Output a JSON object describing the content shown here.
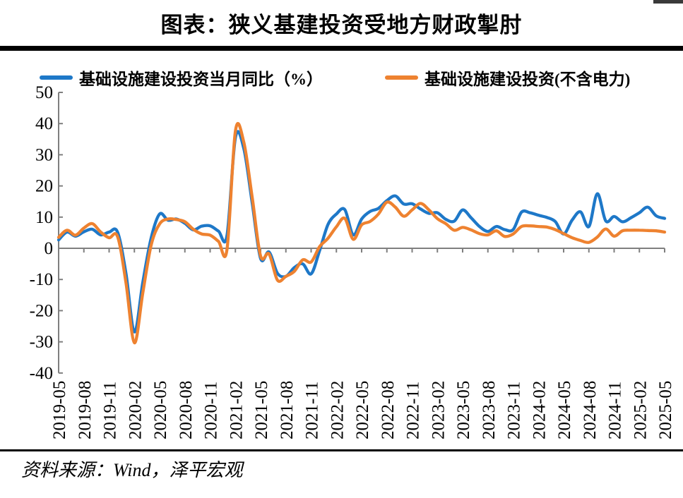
{
  "page": {
    "title": "图表：狭义基建投资受地方财政掣肘",
    "source": "资料来源：Wind，泽平宏观"
  },
  "legend": {
    "items": [
      {
        "label": "基础设施建设投资当月同比（%）",
        "color": "#1E78C8"
      },
      {
        "label": "基础设施建设投资(不含电力)",
        "color": "#EE8230"
      }
    ]
  },
  "chart_data": {
    "type": "line",
    "title": "图表：狭义基建投资受地方财政掣肘",
    "smoothed": true,
    "legend_position": "top",
    "grid": "zero-line-only",
    "ylim": [
      -40,
      50
    ],
    "yticks": [
      50,
      40,
      30,
      20,
      10,
      0,
      -10,
      -20,
      -30,
      -40
    ],
    "xtick_every": 3,
    "x": [
      "2019-05",
      "2019-06",
      "2019-07",
      "2019-08",
      "2019-09",
      "2019-10",
      "2019-11",
      "2019-12",
      "2020-01",
      "2020-02",
      "2020-03",
      "2020-04",
      "2020-05",
      "2020-06",
      "2020-07",
      "2020-08",
      "2020-09",
      "2020-10",
      "2020-11",
      "2020-12",
      "2021-01",
      "2021-02",
      "2021-03",
      "2021-04",
      "2021-05",
      "2021-06",
      "2021-07",
      "2021-08",
      "2021-09",
      "2021-10",
      "2021-11",
      "2021-12",
      "2022-01",
      "2022-02",
      "2022-03",
      "2022-04",
      "2022-05",
      "2022-06",
      "2022-07",
      "2022-08",
      "2022-09",
      "2022-10",
      "2022-11",
      "2022-12",
      "2023-01",
      "2023-02",
      "2023-03",
      "2023-04",
      "2023-05",
      "2023-06",
      "2023-07",
      "2023-08",
      "2023-09",
      "2023-10",
      "2023-11",
      "2023-12",
      "2024-01",
      "2024-02",
      "2024-03",
      "2024-04",
      "2024-05",
      "2024-06",
      "2024-07",
      "2024-08",
      "2024-09",
      "2024-10",
      "2024-11",
      "2024-12",
      "2025-01",
      "2025-02",
      "2025-03",
      "2025-04",
      "2025-05"
    ],
    "series": [
      {
        "name": "基础设施建设投资当月同比（%）",
        "color": "#1E78C8",
        "values": [
          2.7,
          5.2,
          3.9,
          5.3,
          6.1,
          4.3,
          5.2,
          5.2,
          -8.0,
          -26.8,
          -10.9,
          3.4,
          11.0,
          9.0,
          9.4,
          8.0,
          5.9,
          7.1,
          7.2,
          5.5,
          4.0,
          35.5,
          32.0,
          14.5,
          -3.3,
          -1.2,
          -8.0,
          -9.0,
          -6.2,
          -5.0,
          -8.2,
          -0.8,
          7.6,
          11.0,
          12.4,
          4.3,
          9.4,
          11.8,
          12.8,
          15.3,
          16.8,
          14.2,
          14.3,
          12.6,
          11.2,
          11.4,
          9.3,
          8.7,
          12.3,
          9.8,
          7.0,
          5.4,
          7.0,
          6.0,
          6.0,
          11.6,
          11.4,
          10.6,
          9.9,
          8.6,
          4.6,
          9.0,
          11.7,
          7.0,
          17.5,
          8.8,
          10.2,
          8.5,
          9.8,
          11.4,
          13.2,
          10.4,
          9.6
        ]
      },
      {
        "name": "基础设施建设投资(不含电力)",
        "color": "#EE8230",
        "values": [
          3.5,
          5.8,
          4.2,
          6.5,
          7.9,
          5.2,
          3.4,
          3.8,
          -11.0,
          -30.3,
          -14.3,
          1.1,
          7.8,
          9.4,
          9.2,
          8.5,
          6.1,
          4.6,
          4.2,
          2.2,
          -0.5,
          37.6,
          34.0,
          16.3,
          -2.5,
          -1.8,
          -10.2,
          -9.0,
          -7.4,
          -3.7,
          -4.4,
          0.5,
          3.2,
          6.9,
          9.6,
          2.9,
          7.5,
          8.6,
          11.0,
          14.8,
          13.2,
          10.3,
          12.3,
          14.4,
          12.3,
          9.5,
          7.9,
          5.8,
          6.7,
          5.9,
          4.7,
          4.3,
          5.6,
          3.8,
          4.6,
          7.0,
          7.2,
          7.0,
          6.8,
          6.0,
          4.7,
          3.4,
          2.5,
          1.9,
          3.6,
          6.2,
          3.9,
          5.6,
          5.8,
          5.8,
          5.7,
          5.6,
          5.2
        ]
      }
    ]
  },
  "style": {
    "axis_color": "#7F7F7F",
    "text_color": "#000000",
    "line_width": 4.3
  }
}
